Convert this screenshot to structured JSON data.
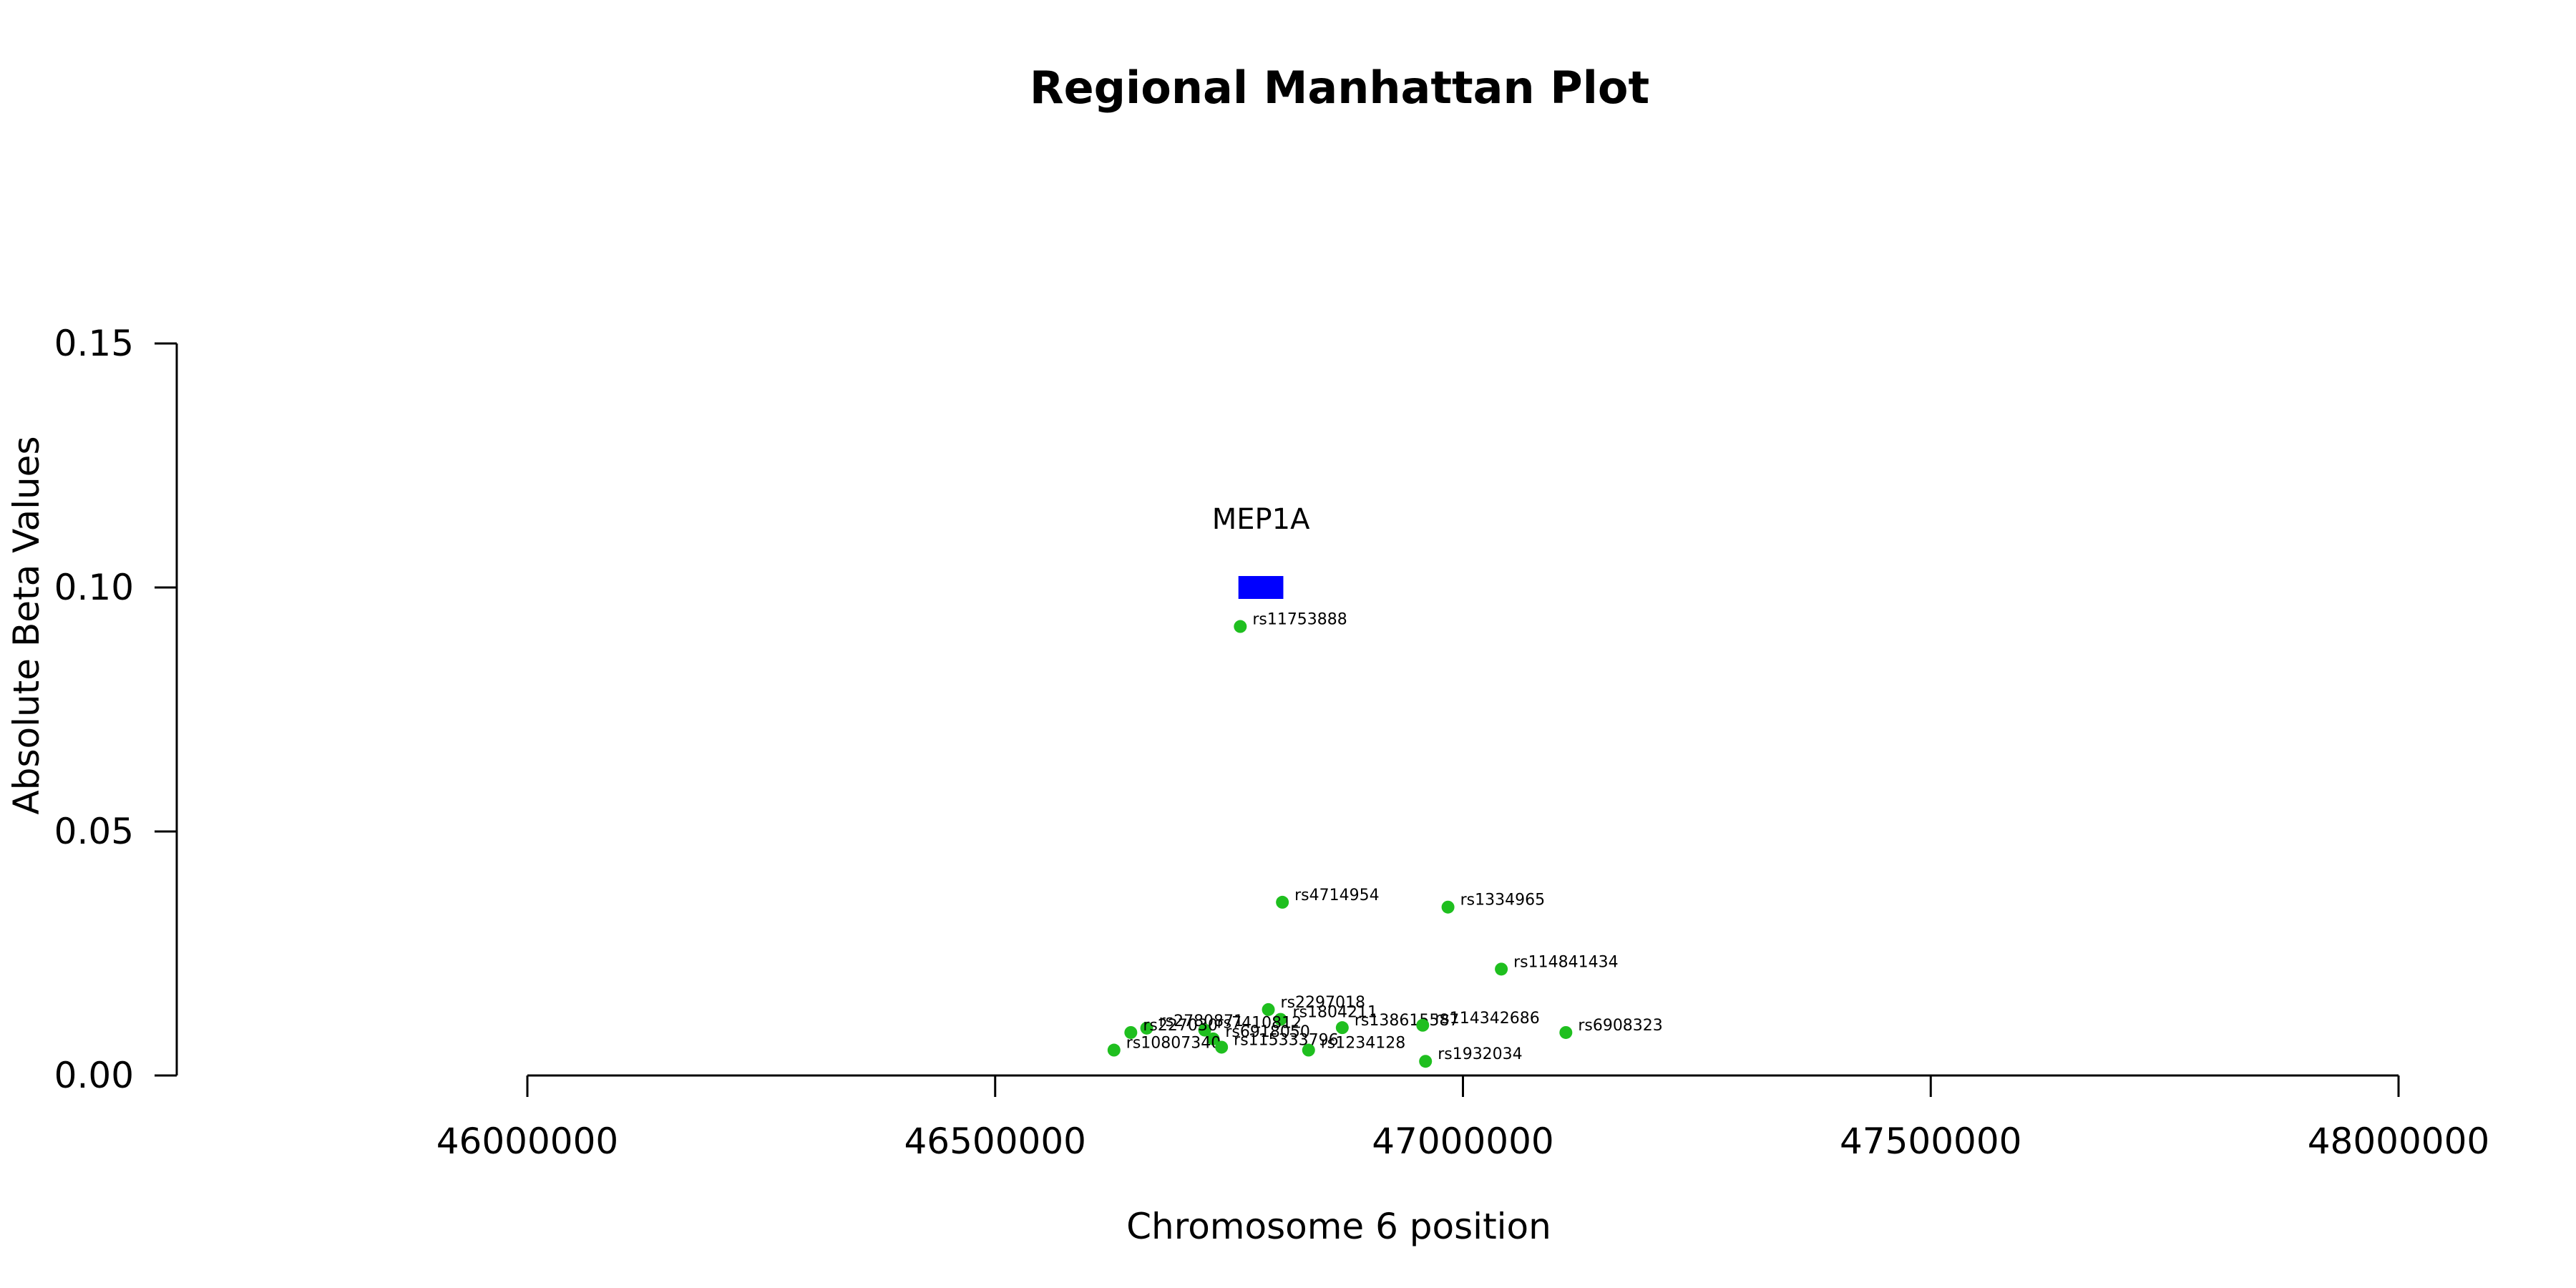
{
  "chart_data": {
    "type": "scatter",
    "title": "Regional Manhattan Plot",
    "xlabel": "Chromosome 6 position",
    "ylabel": "Absolute Beta Values",
    "xlim": [
      46000000,
      48000000
    ],
    "ylim": [
      0,
      0.15
    ],
    "x_ticks": [
      46000000,
      46500000,
      47000000,
      47500000,
      48000000
    ],
    "x_tick_labels": [
      "46000000",
      "46500000",
      "47000000",
      "47500000",
      "48000000"
    ],
    "y_ticks": [
      0,
      0.05,
      0.1,
      0.15
    ],
    "y_tick_labels": [
      "0.00",
      "0.05",
      "0.10",
      "0.15"
    ],
    "grid": false,
    "point_color": "#1fbf1f",
    "gene": {
      "name": "MEP1A",
      "start": 46760000,
      "end": 46808000,
      "y": 0.1,
      "color": "#0000ff"
    },
    "points": [
      {
        "label": "rs11753888",
        "x": 46762000,
        "y": 0.092
      },
      {
        "label": "rs4714954",
        "x": 46807000,
        "y": 0.0355
      },
      {
        "label": "rs1334965",
        "x": 46984000,
        "y": 0.0345
      },
      {
        "label": "rs114841434",
        "x": 47041000,
        "y": 0.0218
      },
      {
        "label": "rs2297018",
        "x": 46792000,
        "y": 0.0135
      },
      {
        "label": "rs1804211",
        "x": 46805000,
        "y": 0.0115
      },
      {
        "label": "rs138615587",
        "x": 46871000,
        "y": 0.0098
      },
      {
        "label": "rs114342686",
        "x": 46957000,
        "y": 0.0103
      },
      {
        "label": "rs6908323",
        "x": 47110000,
        "y": 0.0088
      },
      {
        "label": "rs2780871",
        "x": 46662000,
        "y": 0.0097
      },
      {
        "label": "rs7410812",
        "x": 46724000,
        "y": 0.0093
      },
      {
        "label": "rs227030",
        "x": 46645000,
        "y": 0.0088
      },
      {
        "label": "rs6918050",
        "x": 46733000,
        "y": 0.0075
      },
      {
        "label": "rs10807340",
        "x": 46627000,
        "y": 0.0052
      },
      {
        "label": "rs115333796",
        "x": 46742000,
        "y": 0.0058
      },
      {
        "label": "rs1234128",
        "x": 46835000,
        "y": 0.0052
      },
      {
        "label": "rs1932034",
        "x": 46960000,
        "y": 0.0029
      }
    ]
  }
}
